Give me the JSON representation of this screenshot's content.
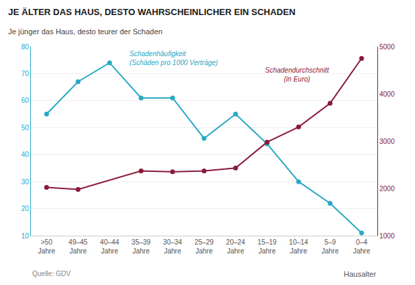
{
  "chart_data": {
    "type": "line",
    "title": "JE ÄLTER DAS HAUS, DESTO WAHRSCHEINLICHER EIN SCHADEN",
    "subtitle": "Je jünger das Haus, desto teurer der Schaden",
    "source": "Quelle: GDV",
    "xlabel": "Hausalter",
    "categories": [
      ">50\nJahre",
      "49–45\nJahre",
      "40–44\nJahre",
      "35–39\nJahre",
      "30–34\nJahre",
      "25–29\nJahre",
      "20–24\nJahre",
      "15–19\nJahre",
      "10–14\nJahre",
      "5–9\nJahre",
      "0–4\nJahre"
    ],
    "series": [
      {
        "name": "Schadenhäufigkeit\n(Schäden pro 1000 Verträge)",
        "color": "#29A9C3",
        "marker": "circle",
        "values": [
          55,
          67,
          74,
          61,
          61,
          46,
          55,
          44,
          30,
          22,
          11
        ]
      },
      {
        "name": "Schadendurchschnitt\n(in Euro)",
        "color": "#8B1A3A",
        "marker": "circle",
        "axis": "y2",
        "values": [
          2020,
          1980,
          null,
          2370,
          2350,
          2370,
          2430,
          2980,
          3300,
          3800,
          4750
        ]
      }
    ],
    "ylim": [
      10,
      80
    ],
    "yticks": [
      10,
      20,
      30,
      40,
      50,
      60,
      70,
      80
    ],
    "y2lim": [
      1000,
      5000
    ],
    "y2ticks": [
      1000,
      2000,
      3000,
      4000,
      5000
    ],
    "grid": true
  }
}
